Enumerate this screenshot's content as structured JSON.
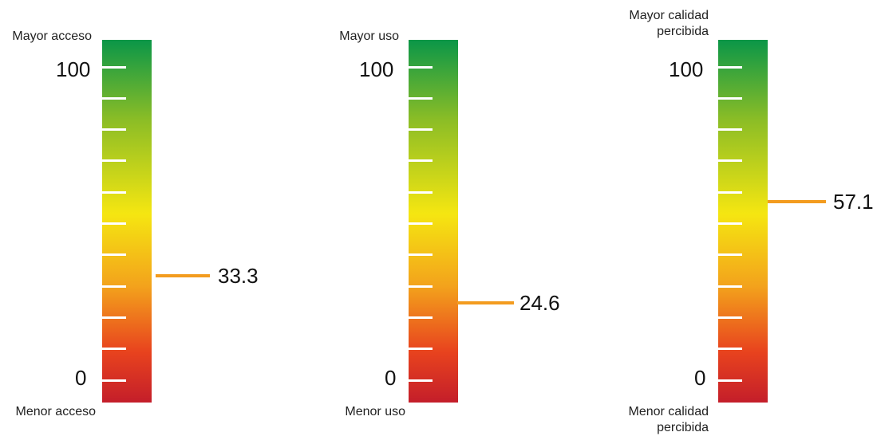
{
  "chart_data": [
    {
      "type": "gauge",
      "top_label": "Mayor acceso",
      "bottom_label": "Menor acceso",
      "max_label": "100",
      "min_label": "0",
      "range": [
        0,
        100
      ],
      "value": 33.3,
      "value_label": "33.3"
    },
    {
      "type": "gauge",
      "top_label": "Mayor uso",
      "bottom_label": "Menor uso",
      "max_label": "100",
      "min_label": "0",
      "range": [
        0,
        100
      ],
      "value": 24.6,
      "value_label": "24.6"
    },
    {
      "type": "gauge",
      "top_label": "Mayor calidad\npercibida",
      "bottom_label": "Menor calidad\npercibida",
      "max_label": "100",
      "min_label": "0",
      "range": [
        0,
        100
      ],
      "value": 57.1,
      "value_label": "57.1"
    }
  ],
  "colors": {
    "marker": "#f39c1f",
    "gradient_top": "#0a9648",
    "gradient_mid": "#f5e611",
    "gradient_bottom": "#c41e2a"
  }
}
